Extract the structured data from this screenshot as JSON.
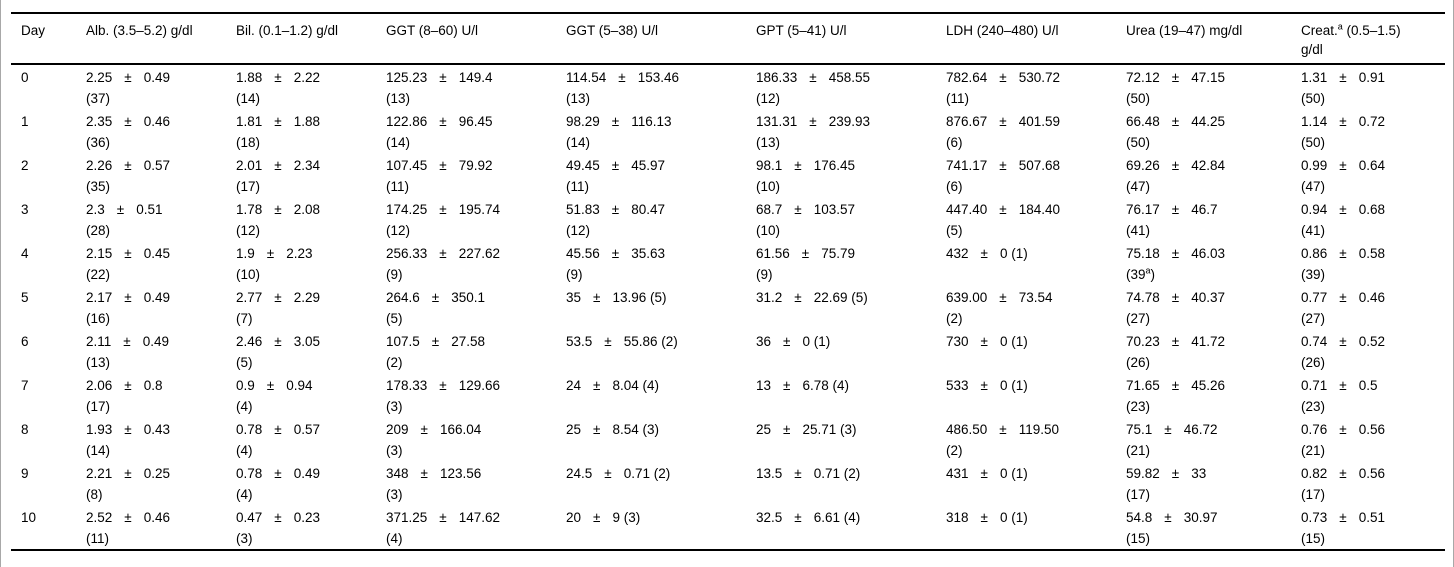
{
  "table": {
    "pm_symbol": "±",
    "columns": [
      {
        "key": "day",
        "label": "Day"
      },
      {
        "key": "alb",
        "label": "Alb. (3.5–5.2) g/dl"
      },
      {
        "key": "bil",
        "label": "Bil. (0.1–1.2) g/dl"
      },
      {
        "key": "ggt_8_60",
        "label": "GGT (8–60) U/l"
      },
      {
        "key": "ggt_5_38",
        "label": "GGT (5–38) U/l"
      },
      {
        "key": "gpt",
        "label": "GPT (5–41) U/l"
      },
      {
        "key": "ldh",
        "label": "LDH (240–480) U/l"
      },
      {
        "key": "urea",
        "label": "Urea (19–47) mg/dl"
      },
      {
        "key": "creat",
        "label": "Creat.^a (0.5–1.5)\ng/dl"
      }
    ],
    "rows": [
      {
        "day": "0",
        "values": [
          {
            "m": "2.25",
            "s": "0.49",
            "n": "(37)"
          },
          {
            "m": "1.88",
            "s": "2.22",
            "n": "(14)"
          },
          {
            "m": "125.23",
            "s": "149.4",
            "n": "(13)"
          },
          {
            "m": "114.54",
            "s": "153.46",
            "n": "(13)"
          },
          {
            "m": "186.33",
            "s": "458.55",
            "n": "(12)"
          },
          {
            "m": "782.64",
            "s": "530.72",
            "n": "(11)"
          },
          {
            "m": "72.12",
            "s": "47.15",
            "n": "(50)"
          },
          {
            "m": "1.31",
            "s": "0.91",
            "n": "(50)"
          }
        ]
      },
      {
        "day": "1",
        "values": [
          {
            "m": "2.35",
            "s": "0.46",
            "n": "(36)"
          },
          {
            "m": "1.81",
            "s": "1.88",
            "n": "(18)"
          },
          {
            "m": "122.86",
            "s": "96.45",
            "n": "(14)"
          },
          {
            "m": "98.29",
            "s": "116.13",
            "n": "(14)"
          },
          {
            "m": "131.31",
            "s": "239.93",
            "n": "(13)"
          },
          {
            "m": "876.67",
            "s": "401.59",
            "n": "(6)"
          },
          {
            "m": "66.48",
            "s": "44.25",
            "n": "(50)"
          },
          {
            "m": "1.14",
            "s": "0.72",
            "n": "(50)"
          }
        ]
      },
      {
        "day": "2",
        "values": [
          {
            "m": "2.26",
            "s": "0.57",
            "n": "(35)"
          },
          {
            "m": "2.01",
            "s": "2.34",
            "n": "(17)"
          },
          {
            "m": "107.45",
            "s": "79.92",
            "n": "(11)"
          },
          {
            "m": "49.45",
            "s": "45.97",
            "n": "(11)"
          },
          {
            "m": "98.1",
            "s": "176.45",
            "n": "(10)"
          },
          {
            "m": "741.17",
            "s": "507.68",
            "n": "(6)"
          },
          {
            "m": "69.26",
            "s": "42.84",
            "n": "(47)"
          },
          {
            "m": "0.99",
            "s": "0.64",
            "n": "(47)"
          }
        ]
      },
      {
        "day": "3",
        "values": [
          {
            "m": "2.3",
            "s": "0.51",
            "n": "(28)"
          },
          {
            "m": "1.78",
            "s": "2.08",
            "n": "(12)"
          },
          {
            "m": "174.25",
            "s": "195.74",
            "n": "(12)"
          },
          {
            "m": "51.83",
            "s": "80.47",
            "n": "(12)"
          },
          {
            "m": "68.7",
            "s": "103.57",
            "n": "(10)"
          },
          {
            "m": "447.40",
            "s": "184.40",
            "n": "(5)"
          },
          {
            "m": "76.17",
            "s": "46.7",
            "n": "(41)"
          },
          {
            "m": "0.94",
            "s": "0.68",
            "n": "(41)"
          }
        ]
      },
      {
        "day": "4",
        "values": [
          {
            "m": "2.15",
            "s": "0.45",
            "n": "(22)"
          },
          {
            "m": "1.9",
            "s": "2.23",
            "n": "(10)"
          },
          {
            "m": "256.33",
            "s": "227.62",
            "n": "(9)"
          },
          {
            "m": "45.56",
            "s": "35.63",
            "n": "(9)"
          },
          {
            "m": "61.56",
            "s": "75.79",
            "n": "(9)"
          },
          {
            "m": "432",
            "s": "0",
            "n": "(1)",
            "inline": true
          },
          {
            "m": "75.18",
            "s": "46.03",
            "n": "(39^a)"
          },
          {
            "m": "0.86",
            "s": "0.58",
            "n": "(39)"
          }
        ]
      },
      {
        "day": "5",
        "values": [
          {
            "m": "2.17",
            "s": "0.49",
            "n": "(16)"
          },
          {
            "m": "2.77",
            "s": "2.29",
            "n": "(7)"
          },
          {
            "m": "264.6",
            "s": "350.1",
            "n": "(5)"
          },
          {
            "m": "35",
            "s": "13.96",
            "n": "(5)",
            "inline": true
          },
          {
            "m": "31.2",
            "s": "22.69",
            "n": "(5)",
            "inline": true
          },
          {
            "m": "639.00",
            "s": "73.54",
            "n": "(2)"
          },
          {
            "m": "74.78",
            "s": "40.37",
            "n": "(27)"
          },
          {
            "m": "0.77",
            "s": "0.46",
            "n": "(27)"
          }
        ]
      },
      {
        "day": "6",
        "values": [
          {
            "m": "2.11",
            "s": "0.49",
            "n": "(13)"
          },
          {
            "m": "2.46",
            "s": "3.05",
            "n": "(5)"
          },
          {
            "m": "107.5",
            "s": "27.58",
            "n": "(2)"
          },
          {
            "m": "53.5",
            "s": "55.86",
            "n": "(2)",
            "inline": true
          },
          {
            "m": "36",
            "s": "0",
            "n": "(1)",
            "inline": true
          },
          {
            "m": "730",
            "s": "0",
            "n": "(1)",
            "inline": true
          },
          {
            "m": "70.23",
            "s": "41.72",
            "n": "(26)"
          },
          {
            "m": "0.74",
            "s": "0.52",
            "n": "(26)"
          }
        ]
      },
      {
        "day": "7",
        "values": [
          {
            "m": "2.06",
            "s": "0.8",
            "n": "(17)"
          },
          {
            "m": "0.9",
            "s": "0.94",
            "n": "(4)"
          },
          {
            "m": "178.33",
            "s": "129.66",
            "n": "(3)"
          },
          {
            "m": "24",
            "s": "8.04",
            "n": "(4)",
            "inline": true
          },
          {
            "m": "13",
            "s": "6.78",
            "n": "(4)",
            "inline": true
          },
          {
            "m": "533",
            "s": "0",
            "n": "(1)",
            "inline": true
          },
          {
            "m": "71.65",
            "s": "45.26",
            "n": "(23)"
          },
          {
            "m": "0.71",
            "s": "0.5",
            "n": "(23)"
          }
        ]
      },
      {
        "day": "8",
        "values": [
          {
            "m": "1.93",
            "s": "0.43",
            "n": "(14)"
          },
          {
            "m": "0.78",
            "s": "0.57",
            "n": "(4)"
          },
          {
            "m": "209",
            "s": "166.04",
            "n": "(3)"
          },
          {
            "m": "25",
            "s": "8.54",
            "n": "(3)",
            "inline": true
          },
          {
            "m": "25",
            "s": "25.71",
            "n": "(3)",
            "inline": true
          },
          {
            "m": "486.50",
            "s": "119.50",
            "n": "(2)"
          },
          {
            "m": "75.1",
            "s": "46.72",
            "n": "(21)"
          },
          {
            "m": "0.76",
            "s": "0.56",
            "n": "(21)"
          }
        ]
      },
      {
        "day": "9",
        "values": [
          {
            "m": "2.21",
            "s": "0.25",
            "n": "(8)"
          },
          {
            "m": "0.78",
            "s": "0.49",
            "n": "(4)"
          },
          {
            "m": "348",
            "s": "123.56",
            "n": "(3)"
          },
          {
            "m": "24.5",
            "s": "0.71",
            "n": "(2)",
            "inline": true
          },
          {
            "m": "13.5",
            "s": "0.71",
            "n": "(2)",
            "inline": true
          },
          {
            "m": "431",
            "s": "0",
            "n": "(1)",
            "inline": true
          },
          {
            "m": "59.82",
            "s": "33",
            "n": "(17)"
          },
          {
            "m": "0.82",
            "s": "0.56",
            "n": "(17)"
          }
        ]
      },
      {
        "day": "10",
        "values": [
          {
            "m": "2.52",
            "s": "0.46",
            "n": "(11)"
          },
          {
            "m": "0.47",
            "s": "0.23",
            "n": "(3)"
          },
          {
            "m": "371.25",
            "s": "147.62",
            "n": "(4)"
          },
          {
            "m": "20",
            "s": "9",
            "n": "(3)",
            "inline": true
          },
          {
            "m": "32.5",
            "s": "6.61",
            "n": "(4)",
            "inline": true
          },
          {
            "m": "318",
            "s": "0",
            "n": "(1)",
            "inline": true
          },
          {
            "m": "54.8",
            "s": "30.97",
            "n": "(15)"
          },
          {
            "m": "0.73",
            "s": "0.51",
            "n": "(15)"
          }
        ]
      }
    ]
  }
}
